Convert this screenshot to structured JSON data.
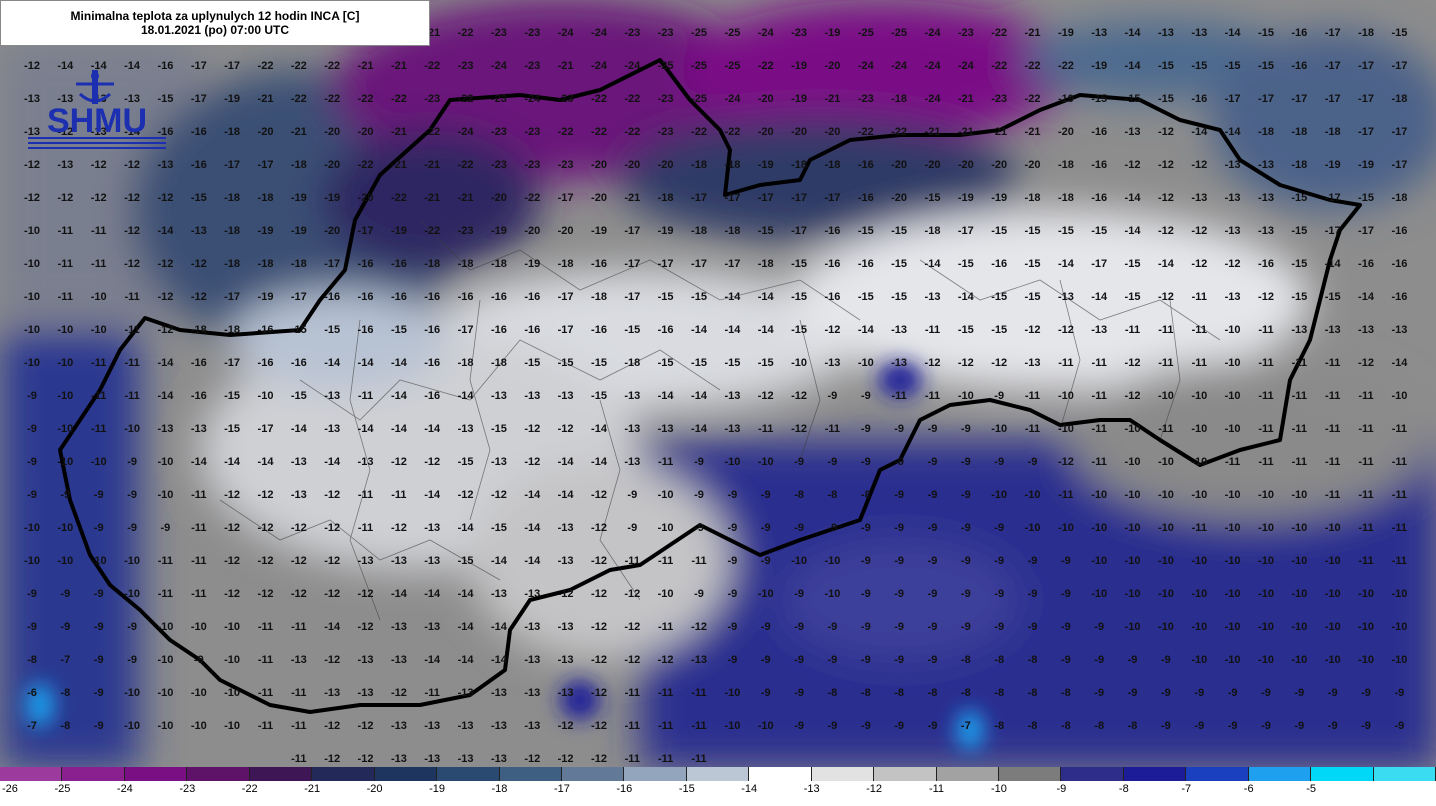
{
  "title": {
    "line1": "Minimalna teplota za uplynulych 12 hodin INCA [C]",
    "line2": "18.01.2021 (po) 07:00 UTC"
  },
  "logo": {
    "text": "SHMU",
    "icon": "shmu-logo-icon"
  },
  "legend": {
    "labels": [
      "-26",
      "-25",
      "-24",
      "-23",
      "-22",
      "-21",
      "-20",
      "-19",
      "-18",
      "-17",
      "-16",
      "-15",
      "-14",
      "-13",
      "-12",
      "-11",
      "-10",
      "-9",
      "-8",
      "-7",
      "-6",
      "-5"
    ],
    "colors": [
      "#9c3a9e",
      "#8a1f90",
      "#7a0f84",
      "#5e1268",
      "#3e1656",
      "#232a5a",
      "#1e3560",
      "#2a4a72",
      "#3f5f82",
      "#627a98",
      "#93a5bd",
      "#bcc7d6",
      "#ffffff",
      "#e2e2e2",
      "#c3c3c3",
      "#a2a2a2",
      "#7c7c7c",
      "#2e2e8a",
      "#1c1c98",
      "#1a3fbf",
      "#1ea0ee",
      "#00d8f8",
      "#3adcf2"
    ]
  },
  "map_values": [
    [
      "",
      "",
      "",
      "",
      "",
      "",
      "",
      "",
      "",
      "",
      "",
      "",
      "-21",
      "-22",
      "-23",
      "-23",
      "-24",
      "-24",
      "-23",
      "-23",
      "-25",
      "-25",
      "-24",
      "-23",
      "-19",
      "-25",
      "-25",
      "-24",
      "-23",
      "-22",
      "-21",
      "-19",
      "-13",
      "-14",
      "-13",
      "-13",
      "-14",
      "-15",
      "-16",
      "-17",
      "-18",
      "-15"
    ],
    [
      "-12",
      "-14",
      "-14",
      "-14",
      "-16",
      "-17",
      "-17",
      "-22",
      "-22",
      "-22",
      "-21",
      "-21",
      "-22",
      "-23",
      "-24",
      "-23",
      "-21",
      "-24",
      "-24",
      "-25",
      "-25",
      "-25",
      "-22",
      "-19",
      "-20",
      "-24",
      "-24",
      "-24",
      "-24",
      "-22",
      "-22",
      "-22",
      "-19",
      "-14",
      "-15",
      "-15",
      "-15",
      "-15",
      "-16",
      "-17",
      "-17",
      "-17"
    ],
    [
      "-13",
      "-13",
      "-13",
      "-13",
      "-15",
      "-17",
      "-19",
      "-21",
      "-22",
      "-22",
      "-22",
      "-22",
      "-23",
      "-22",
      "-23",
      "-24",
      "-23",
      "-22",
      "-22",
      "-23",
      "-25",
      "-24",
      "-20",
      "-19",
      "-21",
      "-23",
      "-18",
      "-24",
      "-21",
      "-23",
      "-22",
      "-19",
      "-15",
      "-15",
      "-15",
      "-16",
      "-17",
      "-17",
      "-17",
      "-17",
      "-17",
      "-18"
    ],
    [
      "-13",
      "-12",
      "-13",
      "-14",
      "-16",
      "-16",
      "-18",
      "-20",
      "-21",
      "-20",
      "-20",
      "-21",
      "-22",
      "-24",
      "-23",
      "-23",
      "-22",
      "-22",
      "-22",
      "-23",
      "-22",
      "-22",
      "-20",
      "-20",
      "-20",
      "-22",
      "-22",
      "-21",
      "-21",
      "-21",
      "-21",
      "-20",
      "-16",
      "-13",
      "-12",
      "-14",
      "-14",
      "-18",
      "-18",
      "-18",
      "-17",
      "-17"
    ],
    [
      "-12",
      "-13",
      "-12",
      "-12",
      "-13",
      "-16",
      "-17",
      "-17",
      "-18",
      "-20",
      "-22",
      "-21",
      "-21",
      "-22",
      "-23",
      "-23",
      "-23",
      "-20",
      "-20",
      "-20",
      "-18",
      "-18",
      "-19",
      "-18",
      "-18",
      "-16",
      "-20",
      "-20",
      "-20",
      "-20",
      "-20",
      "-18",
      "-16",
      "-12",
      "-12",
      "-12",
      "-13",
      "-13",
      "-18",
      "-19",
      "-19",
      "-17"
    ],
    [
      "-12",
      "-12",
      "-12",
      "-12",
      "-12",
      "-15",
      "-18",
      "-18",
      "-19",
      "-19",
      "-20",
      "-22",
      "-21",
      "-21",
      "-20",
      "-22",
      "-17",
      "-20",
      "-21",
      "-18",
      "-17",
      "-17",
      "-17",
      "-17",
      "-17",
      "-16",
      "-20",
      "-15",
      "-19",
      "-19",
      "-18",
      "-18",
      "-16",
      "-14",
      "-12",
      "-13",
      "-13",
      "-13",
      "-15",
      "-17",
      "-15",
      "-18"
    ],
    [
      "-10",
      "-11",
      "-11",
      "-12",
      "-14",
      "-13",
      "-18",
      "-19",
      "-19",
      "-20",
      "-17",
      "-19",
      "-22",
      "-23",
      "-19",
      "-20",
      "-20",
      "-19",
      "-17",
      "-19",
      "-18",
      "-18",
      "-15",
      "-17",
      "-16",
      "-15",
      "-15",
      "-18",
      "-17",
      "-15",
      "-15",
      "-15",
      "-15",
      "-14",
      "-12",
      "-12",
      "-13",
      "-13",
      "-15",
      "-17",
      "-17",
      "-16"
    ],
    [
      "-10",
      "-11",
      "-11",
      "-12",
      "-12",
      "-12",
      "-18",
      "-18",
      "-18",
      "-17",
      "-16",
      "-16",
      "-18",
      "-18",
      "-18",
      "-19",
      "-18",
      "-16",
      "-17",
      "-17",
      "-17",
      "-17",
      "-18",
      "-15",
      "-16",
      "-16",
      "-15",
      "-14",
      "-15",
      "-16",
      "-15",
      "-14",
      "-17",
      "-15",
      "-14",
      "-12",
      "-12",
      "-16",
      "-15",
      "-14",
      "-16",
      "-16"
    ],
    [
      "-10",
      "-11",
      "-10",
      "-11",
      "-12",
      "-12",
      "-17",
      "-19",
      "-17",
      "-16",
      "-16",
      "-16",
      "-16",
      "-16",
      "-16",
      "-16",
      "-17",
      "-18",
      "-17",
      "-15",
      "-15",
      "-14",
      "-14",
      "-15",
      "-16",
      "-15",
      "-15",
      "-13",
      "-14",
      "-15",
      "-15",
      "-13",
      "-14",
      "-15",
      "-12",
      "-11",
      "-13",
      "-12",
      "-15",
      "-15",
      "-14",
      "-16"
    ],
    [
      "-10",
      "-10",
      "-10",
      "-11",
      "-12",
      "-18",
      "-18",
      "-16",
      "-15",
      "-15",
      "-16",
      "-15",
      "-16",
      "-17",
      "-16",
      "-16",
      "-17",
      "-16",
      "-15",
      "-16",
      "-14",
      "-14",
      "-14",
      "-15",
      "-12",
      "-14",
      "-13",
      "-11",
      "-15",
      "-15",
      "-12",
      "-12",
      "-13",
      "-11",
      "-11",
      "-11",
      "-10",
      "-11",
      "-13",
      "-13",
      "-13",
      "-13"
    ],
    [
      "-10",
      "-10",
      "-11",
      "-11",
      "-14",
      "-16",
      "-17",
      "-16",
      "-16",
      "-14",
      "-14",
      "-14",
      "-16",
      "-18",
      "-18",
      "-15",
      "-15",
      "-15",
      "-18",
      "-15",
      "-15",
      "-15",
      "-15",
      "-10",
      "-13",
      "-10",
      "-13",
      "-12",
      "-12",
      "-12",
      "-13",
      "-11",
      "-11",
      "-12",
      "-11",
      "-11",
      "-10",
      "-11",
      "-11",
      "-11",
      "-12",
      "-14"
    ],
    [
      "-9",
      "-10",
      "-11",
      "-11",
      "-14",
      "-16",
      "-15",
      "-10",
      "-15",
      "-13",
      "-11",
      "-14",
      "-16",
      "-14",
      "-13",
      "-13",
      "-13",
      "-15",
      "-13",
      "-14",
      "-14",
      "-13",
      "-12",
      "-12",
      "-9",
      "-9",
      "-11",
      "-11",
      "-10",
      "-9",
      "-11",
      "-10",
      "-11",
      "-12",
      "-10",
      "-10",
      "-10",
      "-11",
      "-11",
      "-11",
      "-11",
      "-10"
    ],
    [
      "-9",
      "-10",
      "-11",
      "-10",
      "-13",
      "-13",
      "-15",
      "-17",
      "-14",
      "-13",
      "-14",
      "-14",
      "-14",
      "-13",
      "-15",
      "-12",
      "-12",
      "-14",
      "-13",
      "-13",
      "-14",
      "-13",
      "-11",
      "-12",
      "-11",
      "-9",
      "-9",
      "-9",
      "-9",
      "-10",
      "-11",
      "-10",
      "-11",
      "-10",
      "-11",
      "-10",
      "-10",
      "-11",
      "-11",
      "-11",
      "-11",
      "-11"
    ],
    [
      "-9",
      "-10",
      "-10",
      "-9",
      "-10",
      "-14",
      "-14",
      "-14",
      "-13",
      "-14",
      "-13",
      "-12",
      "-12",
      "-15",
      "-13",
      "-12",
      "-14",
      "-14",
      "-13",
      "-11",
      "-9",
      "-10",
      "-10",
      "-9",
      "-9",
      "-9",
      "-9",
      "-9",
      "-9",
      "-9",
      "-9",
      "-12",
      "-11",
      "-10",
      "-10",
      "-10",
      "-11",
      "-11",
      "-11",
      "-11",
      "-11",
      "-11"
    ],
    [
      "-9",
      "-9",
      "-9",
      "-9",
      "-10",
      "-11",
      "-12",
      "-12",
      "-13",
      "-12",
      "-11",
      "-11",
      "-14",
      "-12",
      "-12",
      "-14",
      "-14",
      "-12",
      "-9",
      "-10",
      "-9",
      "-9",
      "-9",
      "-8",
      "-8",
      "-8",
      "-9",
      "-9",
      "-9",
      "-10",
      "-10",
      "-11",
      "-10",
      "-10",
      "-10",
      "-10",
      "-10",
      "-10",
      "-10",
      "-11",
      "-11",
      "-11"
    ],
    [
      "-10",
      "-10",
      "-9",
      "-9",
      "-9",
      "-11",
      "-12",
      "-12",
      "-12",
      "-12",
      "-11",
      "-12",
      "-13",
      "-14",
      "-15",
      "-14",
      "-13",
      "-12",
      "-9",
      "-10",
      "-9",
      "-9",
      "-9",
      "-9",
      "-9",
      "-9",
      "-9",
      "-9",
      "-9",
      "-9",
      "-10",
      "-10",
      "-10",
      "-10",
      "-10",
      "-11",
      "-10",
      "-10",
      "-10",
      "-10",
      "-11",
      "-11"
    ],
    [
      "-10",
      "-10",
      "-10",
      "-10",
      "-11",
      "-11",
      "-12",
      "-12",
      "-12",
      "-12",
      "-13",
      "-13",
      "-13",
      "-15",
      "-14",
      "-14",
      "-13",
      "-12",
      "-11",
      "-11",
      "-11",
      "-9",
      "-9",
      "-10",
      "-10",
      "-9",
      "-9",
      "-9",
      "-9",
      "-9",
      "-9",
      "-9",
      "-10",
      "-10",
      "-10",
      "-10",
      "-10",
      "-10",
      "-10",
      "-10",
      "-11",
      "-11"
    ],
    [
      "-9",
      "-9",
      "-9",
      "-10",
      "-11",
      "-11",
      "-12",
      "-12",
      "-12",
      "-12",
      "-12",
      "-14",
      "-14",
      "-14",
      "-13",
      "-13",
      "-12",
      "-12",
      "-12",
      "-10",
      "-9",
      "-9",
      "-10",
      "-9",
      "-10",
      "-9",
      "-9",
      "-9",
      "-9",
      "-9",
      "-9",
      "-9",
      "-10",
      "-10",
      "-10",
      "-10",
      "-10",
      "-10",
      "-10",
      "-10",
      "-10",
      "-10"
    ],
    [
      "-9",
      "-9",
      "-9",
      "-9",
      "-10",
      "-10",
      "-10",
      "-11",
      "-11",
      "-14",
      "-12",
      "-13",
      "-13",
      "-14",
      "-14",
      "-13",
      "-13",
      "-12",
      "-12",
      "-11",
      "-12",
      "-9",
      "-9",
      "-9",
      "-9",
      "-9",
      "-9",
      "-9",
      "-9",
      "-9",
      "-9",
      "-9",
      "-9",
      "-10",
      "-10",
      "-10",
      "-10",
      "-10",
      "-10",
      "-10",
      "-10",
      "-10"
    ],
    [
      "-8",
      "-7",
      "-9",
      "-9",
      "-10",
      "-9",
      "-10",
      "-11",
      "-13",
      "-12",
      "-13",
      "-13",
      "-14",
      "-14",
      "-14",
      "-13",
      "-13",
      "-12",
      "-12",
      "-12",
      "-13",
      "-9",
      "-9",
      "-9",
      "-9",
      "-9",
      "-9",
      "-9",
      "-8",
      "-8",
      "-8",
      "-9",
      "-9",
      "-9",
      "-9",
      "-10",
      "-10",
      "-10",
      "-10",
      "-10",
      "-10",
      "-10"
    ],
    [
      "-6",
      "-8",
      "-9",
      "-10",
      "-10",
      "-10",
      "-10",
      "-11",
      "-11",
      "-13",
      "-13",
      "-12",
      "-11",
      "-13",
      "-13",
      "-13",
      "-13",
      "-12",
      "-11",
      "-11",
      "-11",
      "-10",
      "-9",
      "-9",
      "-8",
      "-8",
      "-8",
      "-8",
      "-8",
      "-8",
      "-8",
      "-8",
      "-9",
      "-9",
      "-9",
      "-9",
      "-9",
      "-9",
      "-9",
      "-9",
      "-9",
      "-9"
    ],
    [
      "-7",
      "-8",
      "-9",
      "-10",
      "-10",
      "-10",
      "-10",
      "-11",
      "-11",
      "-12",
      "-12",
      "-13",
      "-13",
      "-13",
      "-13",
      "-13",
      "-12",
      "-12",
      "-11",
      "-11",
      "-11",
      "-10",
      "-10",
      "-9",
      "-9",
      "-9",
      "-9",
      "-9",
      "-7",
      "-8",
      "-8",
      "-8",
      "-8",
      "-8",
      "-9",
      "-9",
      "-9",
      "-9",
      "-9",
      "-9",
      "-9",
      "-9"
    ],
    [
      "",
      "",
      "",
      "",
      "",
      "",
      "",
      "",
      "-11",
      "-12",
      "-12",
      "-13",
      "-13",
      "-13",
      "-13",
      "-12",
      "-12",
      "-12",
      "-11",
      "-11",
      "-11",
      "",
      "",
      "",
      "",
      "",
      "",
      "",
      "",
      "",
      "",
      "",
      "",
      "",
      "",
      "",
      "",
      "",
      "",
      "",
      "",
      ""
    ]
  ]
}
